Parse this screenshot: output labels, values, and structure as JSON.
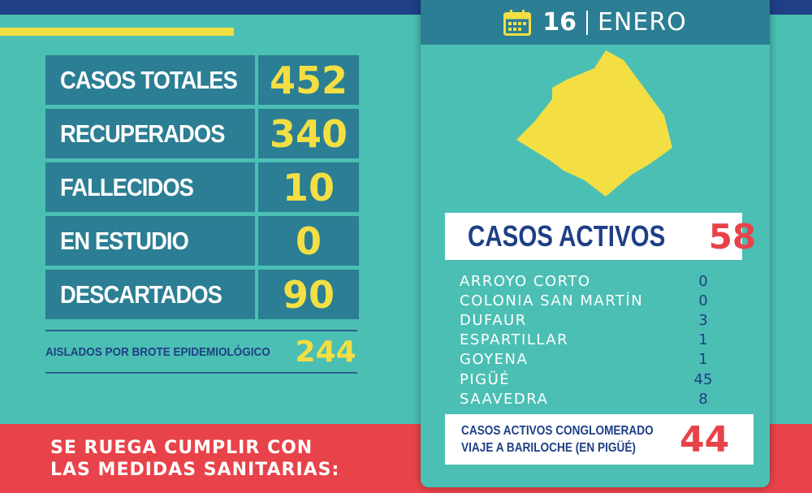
{
  "stats": [
    {
      "label": "CASOS TOTALES",
      "value": "452"
    },
    {
      "label": "RECUPERADOS",
      "value": "340"
    },
    {
      "label": "FALLECIDOS",
      "value": "10"
    },
    {
      "label": "EN ESTUDIO",
      "value": "0"
    },
    {
      "label": "DESCARTADOS",
      "value": "90"
    }
  ],
  "isolated": {
    "label": "AISLADOS POR BROTE EPIDEMIOLÓGICO",
    "value": "244"
  },
  "date": {
    "day": "16",
    "month": "ENERO"
  },
  "active": {
    "label": "CASOS ACTIVOS",
    "value": "58"
  },
  "localities": [
    {
      "name": "ARROYO CORTO",
      "count": "0"
    },
    {
      "name": "COLONIA SAN MARTÍN",
      "count": "0"
    },
    {
      "name": "DUFAUR",
      "count": "3"
    },
    {
      "name": "ESPARTILLAR",
      "count": "1"
    },
    {
      "name": "GOYENA",
      "count": "1"
    },
    {
      "name": "PIGÜÉ",
      "count": "45"
    },
    {
      "name": "SAAVEDRA",
      "count": "8"
    }
  ],
  "cluster": {
    "line1": "CASOS ACTIVOS CONGLOMERADO",
    "line2": "VIAJE A BARILOCHE (EN PIGÜÉ)",
    "value": "44"
  },
  "footer": {
    "line1": "SE RUEGA CUMPLIR CON",
    "line2": "LAS MEDIDAS SANITARIAS:"
  },
  "colors": {
    "teal": "#4bbfb3",
    "dark_teal": "#2b7e93",
    "navy": "#1f3f86",
    "yellow": "#f3df43",
    "red": "#e8434a"
  },
  "icons": {
    "calendar": "calendar-icon",
    "map": "district-map-shape"
  }
}
